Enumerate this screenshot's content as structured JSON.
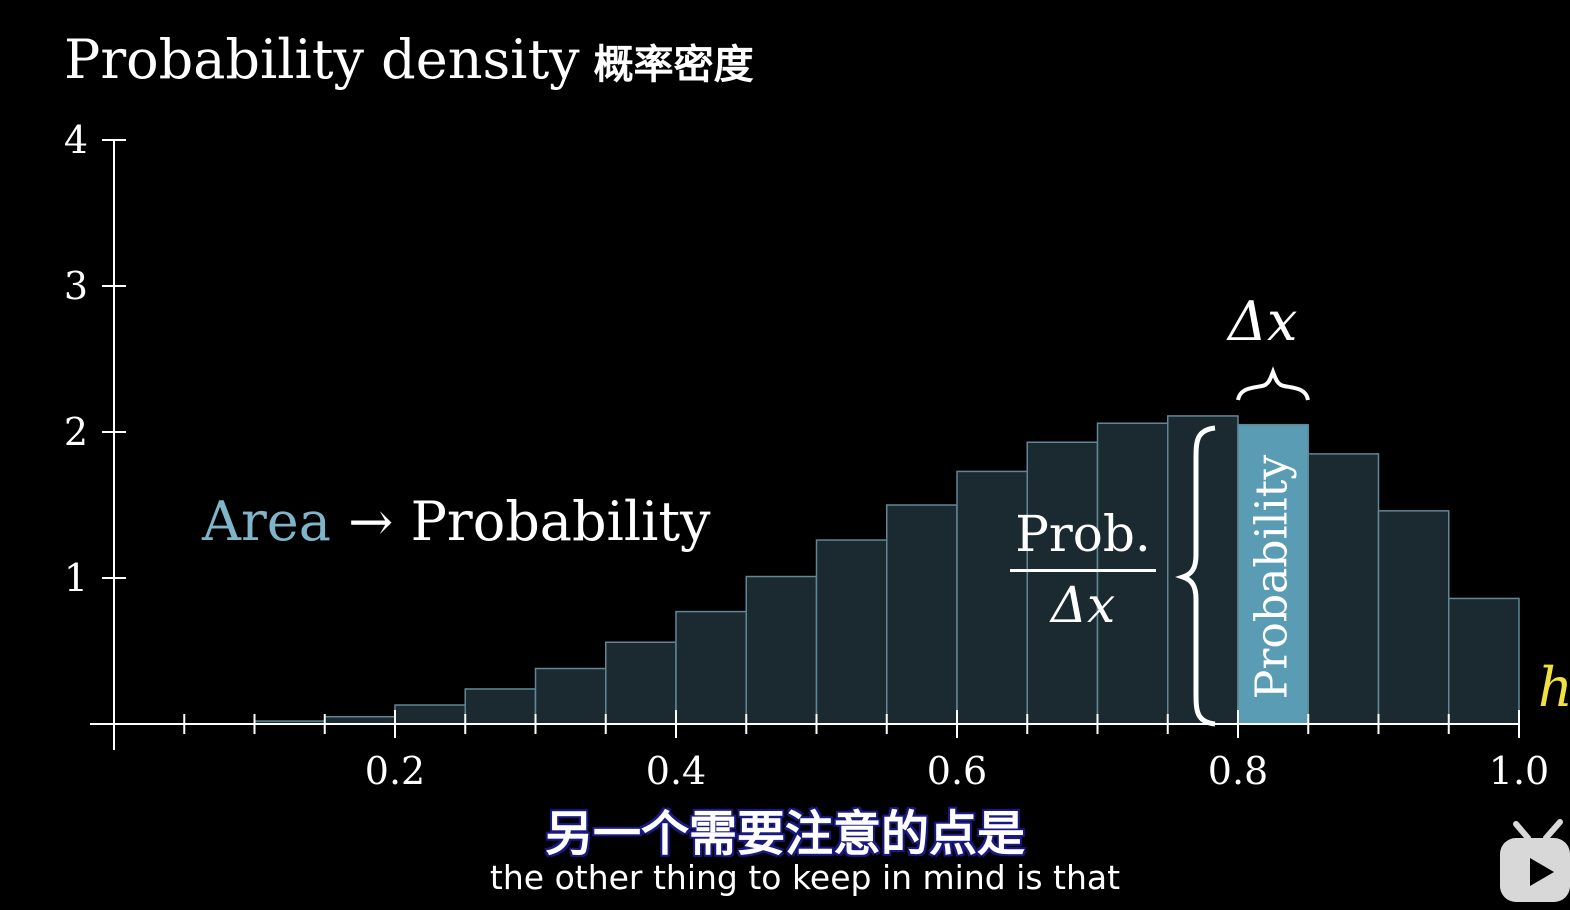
{
  "title": "Probability density",
  "title_cn": "概率密度",
  "annotation": {
    "area_word": "Area",
    "arrow": "→",
    "probability": "Probability",
    "frac_num": "Prob.",
    "frac_den": "Δx",
    "delta_top": "Δx",
    "bar_label": "Probability",
    "h": "h"
  },
  "subtitle": {
    "cn": "另一个需要注意的点是",
    "en": "the other thing to keep in mind is that"
  },
  "colors": {
    "bar_fill": "#1b2a30",
    "bar_stroke": "#5f8796",
    "highlight_fill": "#5a9cb4",
    "axis": "#ffffff",
    "area_text": "#7fb4c9",
    "h_label": "#f0e040"
  },
  "chart_data": {
    "type": "bar",
    "title": "Probability density",
    "xlim": [
      0.0,
      1.0
    ],
    "ylim": [
      0,
      4
    ],
    "bin_width": 0.05,
    "x_ticks": [
      0.2,
      0.4,
      0.6,
      0.8,
      1.0
    ],
    "x_tick_labels": [
      "0.2",
      "0.4",
      "0.6",
      "0.8",
      "1.0"
    ],
    "y_ticks": [
      1,
      2,
      3,
      4
    ],
    "y_tick_labels": [
      "1",
      "2",
      "3",
      "4"
    ],
    "bin_starts": [
      0.0,
      0.05,
      0.1,
      0.15,
      0.2,
      0.25,
      0.3,
      0.35,
      0.4,
      0.45,
      0.5,
      0.55,
      0.6,
      0.65,
      0.7,
      0.75,
      0.8,
      0.85,
      0.9,
      0.95
    ],
    "values": [
      0.0,
      0.0,
      0.02,
      0.05,
      0.13,
      0.24,
      0.38,
      0.56,
      0.77,
      1.01,
      1.26,
      1.5,
      1.73,
      1.93,
      2.06,
      2.11,
      2.05,
      1.85,
      1.46,
      0.86
    ],
    "highlight_bin_start": 0.8,
    "grid": false
  }
}
